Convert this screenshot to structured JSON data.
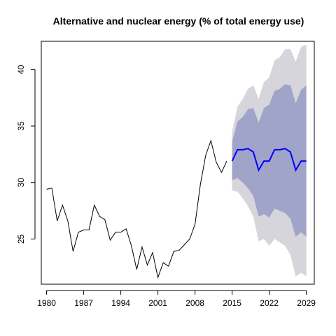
{
  "chart_data": {
    "type": "line",
    "title": "Alternative and nuclear energy (% of total energy use)",
    "xlabel": "",
    "ylabel": "",
    "xlim": [
      1979,
      2030.5
    ],
    "ylim": [
      21,
      42.5
    ],
    "x_ticks": [
      1980,
      1987,
      1994,
      2001,
      2008,
      2015,
      2022,
      2029
    ],
    "y_ticks": [
      25,
      30,
      35,
      40
    ],
    "grid": false,
    "colors": {
      "history": "#000000",
      "forecast": "#0000ff",
      "band80": "#a0a4c8",
      "band95": "#d5d5db",
      "axis": "#000000"
    },
    "series": [
      {
        "kind": "history",
        "x": [
          1980,
          1981,
          1982,
          1983,
          1984,
          1985,
          1986,
          1987,
          1988,
          1989,
          1990,
          1991,
          1992,
          1993,
          1994,
          1995,
          1996,
          1997,
          1998,
          1999,
          2000,
          2001,
          2002,
          2003,
          2004,
          2005,
          2006,
          2007,
          2008,
          2009,
          2010,
          2011,
          2012,
          2013,
          2014
        ],
        "values": [
          29.4,
          29.5,
          26.6,
          28.0,
          26.6,
          23.9,
          25.6,
          25.8,
          25.8,
          28.0,
          27.0,
          26.7,
          24.9,
          25.6,
          25.6,
          25.9,
          24.4,
          22.3,
          24.3,
          22.7,
          23.8,
          21.6,
          22.9,
          22.6,
          23.9,
          24.0,
          24.5,
          25.0,
          26.3,
          29.8,
          32.4,
          33.7,
          31.8,
          30.9,
          31.9
        ]
      },
      {
        "kind": "forecast",
        "x": [
          2015,
          2016,
          2017,
          2018,
          2019,
          2020,
          2021,
          2022,
          2023,
          2024,
          2025,
          2026,
          2027,
          2028,
          2029
        ],
        "values": [
          31.9,
          32.9,
          32.9,
          33.0,
          32.7,
          31.1,
          31.9,
          31.9,
          32.9,
          32.9,
          33.0,
          32.7,
          31.1,
          31.9,
          31.9
        ],
        "lower80": [
          30.2,
          30.4,
          30.0,
          29.5,
          28.8,
          27.0,
          27.2,
          26.9,
          27.7,
          27.5,
          27.3,
          26.8,
          25.2,
          25.6,
          25.2
        ],
        "upper80": [
          33.6,
          35.4,
          35.8,
          36.5,
          36.6,
          35.3,
          36.6,
          36.9,
          38.1,
          38.3,
          38.7,
          38.6,
          37.0,
          38.2,
          38.6
        ],
        "lower95": [
          29.3,
          29.2,
          28.6,
          27.9,
          27.0,
          24.8,
          25.0,
          24.4,
          25.0,
          24.7,
          24.4,
          23.6,
          21.7,
          22.0,
          21.7
        ],
        "upper95": [
          34.5,
          36.7,
          37.4,
          38.3,
          38.6,
          37.4,
          38.9,
          39.3,
          40.8,
          41.1,
          41.8,
          41.8,
          40.7,
          42.0,
          42.2
        ]
      }
    ]
  }
}
